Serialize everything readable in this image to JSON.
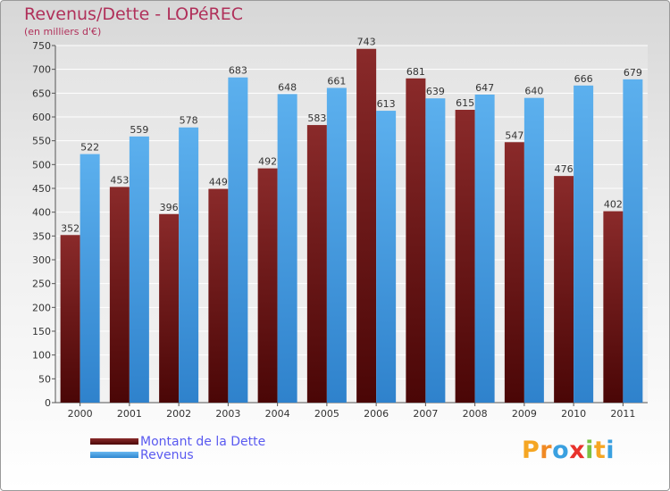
{
  "chart_data": {
    "type": "bar",
    "title": "Revenus/Dette - LOPéREC",
    "subtitle": "(en milliers d'€)",
    "categories": [
      "2000",
      "2001",
      "2002",
      "2003",
      "2004",
      "2005",
      "2006",
      "2007",
      "2008",
      "2009",
      "2010",
      "2011"
    ],
    "series": [
      {
        "name": "Montant de la Dette",
        "color": "#7a1f1f",
        "values": [
          352,
          453,
          396,
          449,
          492,
          583,
          743,
          681,
          615,
          547,
          476,
          402
        ]
      },
      {
        "name": "Revenus",
        "color": "#4fa3e6",
        "values": [
          522,
          559,
          578,
          683,
          648,
          661,
          613,
          639,
          647,
          640,
          666,
          679
        ]
      }
    ],
    "ylim": [
      0,
      750
    ],
    "yticks": [
      0,
      50,
      100,
      150,
      200,
      250,
      300,
      350,
      400,
      450,
      500,
      550,
      600,
      650,
      700,
      750
    ],
    "grid": true,
    "legend_position": "bottom-left"
  },
  "brand": {
    "text": "Proxiti",
    "letters": [
      "P",
      "r",
      "o",
      "x",
      "i",
      "t",
      "i"
    ],
    "colors": [
      "#f5a623",
      "#f08a24",
      "#3aa0e0",
      "#e8322c",
      "#7ac143",
      "#f5a623",
      "#3aa0e0"
    ]
  }
}
